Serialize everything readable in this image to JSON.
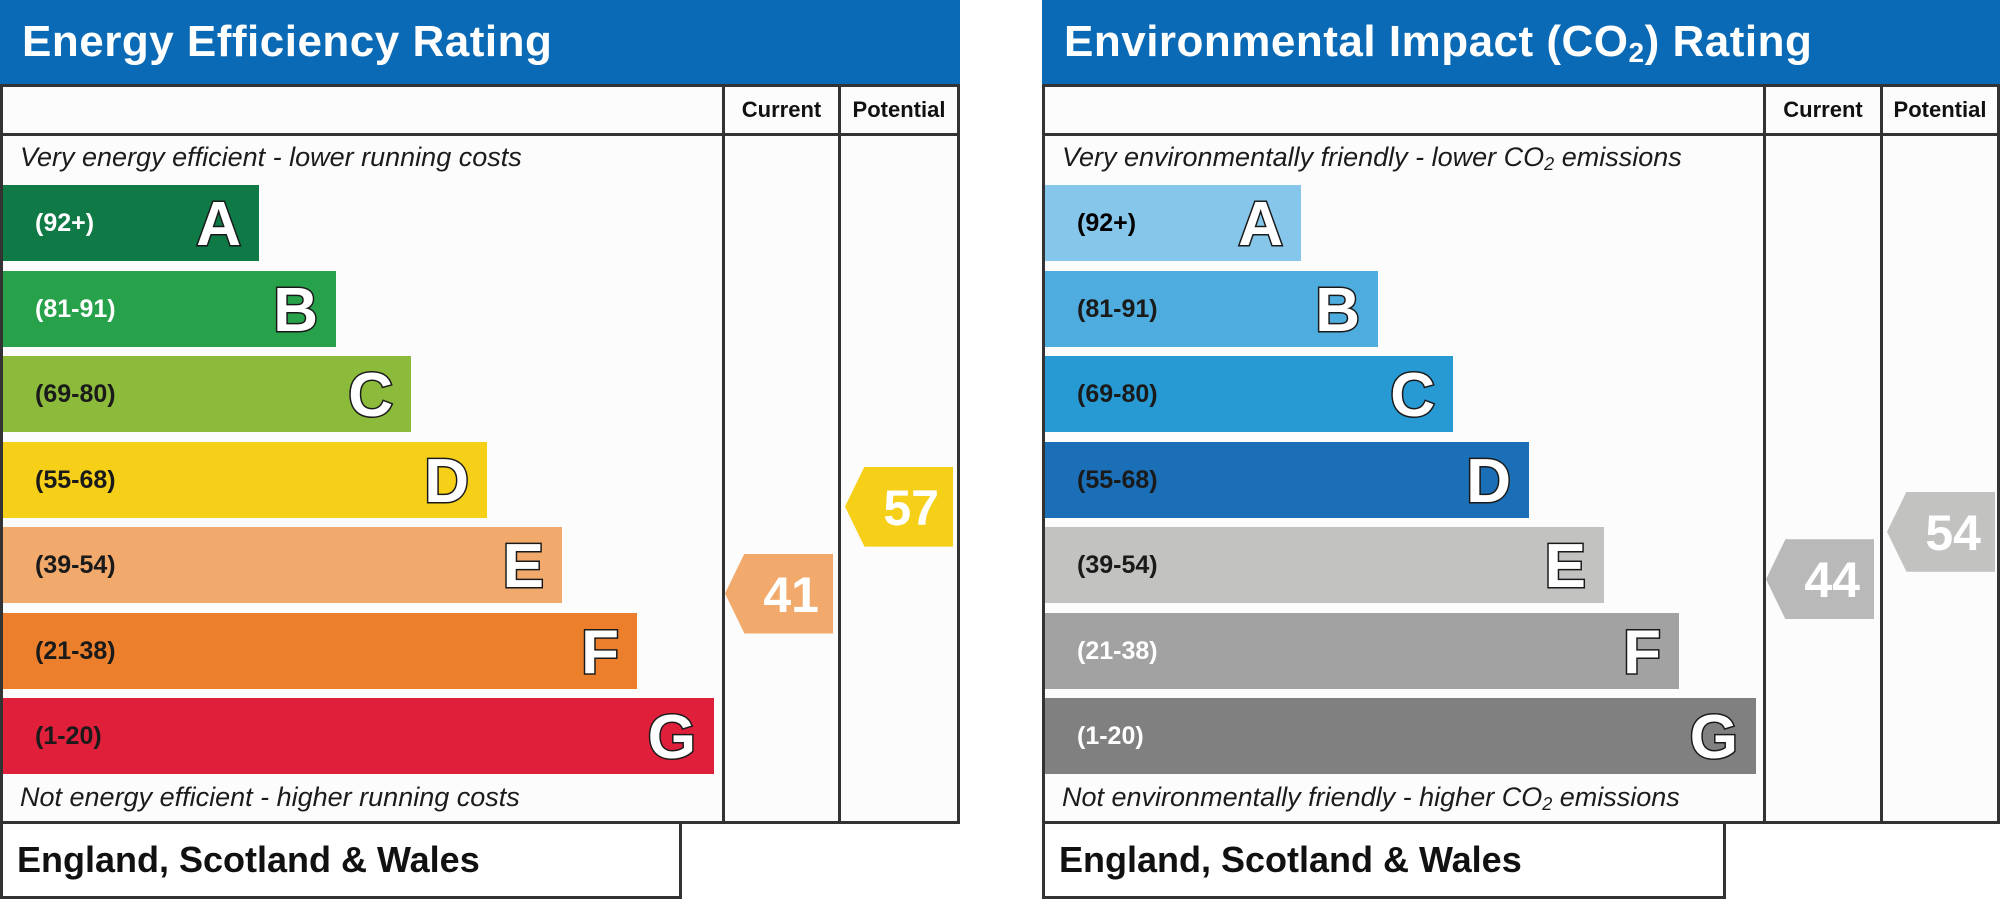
{
  "chart_data": [
    {
      "type": "bar",
      "title": "Energy Efficiency Rating",
      "columns": [
        "Current",
        "Potential"
      ],
      "top_caption": "Very energy efficient - lower running costs",
      "bottom_caption": "Not energy efficient - higher running costs",
      "footer": "England, Scotland & Wales",
      "bands": [
        {
          "range": "(92+)",
          "letter": "A",
          "color": "#0f7a45",
          "text_color": "#ffffff"
        },
        {
          "range": "(81-91)",
          "letter": "B",
          "color": "#27a24a",
          "text_color": "#ffffff"
        },
        {
          "range": "(69-80)",
          "letter": "C",
          "color": "#8cbb3c",
          "text_color": "#1a1a1a"
        },
        {
          "range": "(55-68)",
          "letter": "D",
          "color": "#f6cf18",
          "text_color": "#1a1a1a"
        },
        {
          "range": "(39-54)",
          "letter": "E",
          "color": "#f2aa6c",
          "text_color": "#1a1a1a"
        },
        {
          "range": "(21-38)",
          "letter": "F",
          "color": "#ec7f2b",
          "text_color": "#1a1a1a"
        },
        {
          "range": "(1-20)",
          "letter": "G",
          "color": "#e0203b",
          "text_color": "#1a1a1a"
        }
      ],
      "current": {
        "value": 41,
        "label": "41",
        "color": "#f2aa6c"
      },
      "potential": {
        "value": 57,
        "label": "57",
        "color": "#f6cf18"
      }
    },
    {
      "type": "bar",
      "title_main": "Environmental Impact (CO",
      "title_sub": "2",
      "title_end": ") Rating",
      "columns": [
        "Current",
        "Potential"
      ],
      "top_caption_main": "Very environmentally friendly - lower CO",
      "top_caption_sub": "2",
      "top_caption_end": " emissions",
      "bottom_caption_main": "Not environmentally friendly - higher CO",
      "bottom_caption_sub": "2",
      "bottom_caption_end": " emissions",
      "footer": "England, Scotland & Wales",
      "bands": [
        {
          "range": "(92+)",
          "letter": "A",
          "color": "#86c6ea",
          "text_color": "#000000"
        },
        {
          "range": "(81-91)",
          "letter": "B",
          "color": "#4eacdf",
          "text_color": "#1a1a1a"
        },
        {
          "range": "(69-80)",
          "letter": "C",
          "color": "#279ad3",
          "text_color": "#1a1a1a"
        },
        {
          "range": "(55-68)",
          "letter": "D",
          "color": "#1a6fb6",
          "text_color": "#1a1a1a"
        },
        {
          "range": "(39-54)",
          "letter": "E",
          "color": "#c2c2c0",
          "text_color": "#1a1a1a"
        },
        {
          "range": "(21-38)",
          "letter": "F",
          "color": "#a2a2a2",
          "text_color": "#ffffff"
        },
        {
          "range": "(1-20)",
          "letter": "G",
          "color": "#808080",
          "text_color": "#ffffff"
        }
      ],
      "current": {
        "value": 44,
        "label": "44",
        "color": "#b9b9b9"
      },
      "potential": {
        "value": 54,
        "label": "54",
        "color": "#c2c2c0"
      }
    }
  ]
}
